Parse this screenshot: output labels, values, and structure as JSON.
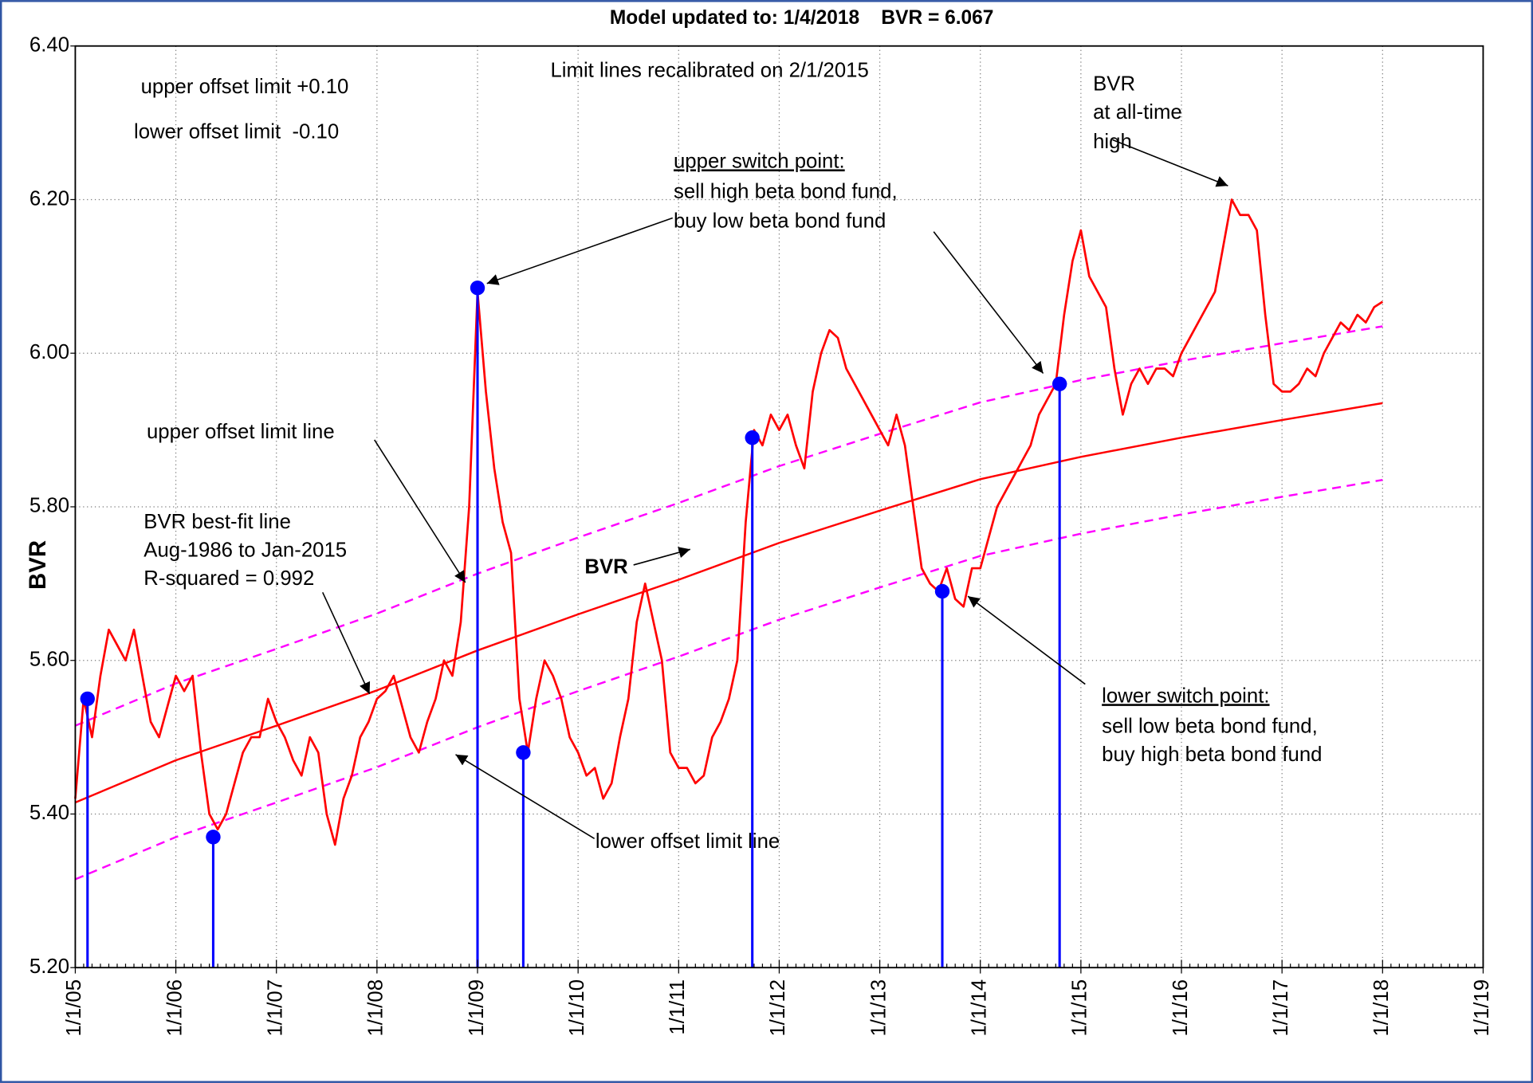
{
  "chart_data": {
    "type": "line",
    "title": "Model updated to: 1/4/2018    BVR = 6.067",
    "y_label": "BVR",
    "annotations": [
      {
        "text": "Limit lines recalibrated on 2/1/2015"
      },
      {
        "text": "upper offset limit +0.10"
      },
      {
        "text": "lower offset limit  -0.10"
      },
      {
        "text": "upper switch point:",
        "underline": true
      },
      {
        "text": "sell high beta bond fund,"
      },
      {
        "text": "buy low beta bond fund"
      },
      {
        "text": "BVR"
      },
      {
        "text": "at all-time"
      },
      {
        "text": "high"
      },
      {
        "text": "upper offset limit line"
      },
      {
        "text": "BVR best-fit line"
      },
      {
        "text": "Aug-1986 to Jan-2015"
      },
      {
        "text": "R-squared = 0.992"
      },
      {
        "text": "BVR",
        "bold": true
      },
      {
        "text": "lower offset limit line"
      },
      {
        "text": "lower switch point:",
        "underline": true
      },
      {
        "text": "sell low beta bond fund,"
      },
      {
        "text": "buy high beta bond fund"
      }
    ],
    "xlim": [
      "1/1/05",
      "1/1/19"
    ],
    "xticks": [
      "1/1/05",
      "1/1/06",
      "1/1/07",
      "1/1/08",
      "1/1/09",
      "1/1/10",
      "1/1/11",
      "1/1/12",
      "1/1/13",
      "1/1/14",
      "1/1/15",
      "1/1/16",
      "1/1/17",
      "1/1/18",
      "1/1/19"
    ],
    "ylim": [
      5.2,
      6.4
    ],
    "yticks": [
      {
        "value": 5.2,
        "label": "5.20"
      },
      {
        "value": 5.4,
        "label": "5.40"
      },
      {
        "value": 5.6,
        "label": "5.60"
      },
      {
        "value": 5.8,
        "label": "5.80"
      },
      {
        "value": 6.0,
        "label": "6.00"
      },
      {
        "value": 6.2,
        "label": "6.20"
      },
      {
        "value": 6.4,
        "label": "6.40"
      }
    ],
    "grid": true,
    "series": [
      {
        "color": "#ff0000",
        "style": "solid",
        "width": 2.2,
        "x": [
          "1/1/05",
          "2/1/05",
          "3/1/05",
          "4/1/05",
          "5/1/05",
          "6/1/05",
          "7/1/05",
          "8/1/05",
          "9/1/05",
          "10/1/05",
          "11/1/05",
          "12/1/05",
          "1/1/06",
          "2/1/06",
          "3/1/06",
          "4/1/06",
          "5/1/06",
          "6/1/06",
          "7/1/06",
          "8/1/06",
          "9/1/06",
          "10/1/06",
          "11/1/06",
          "12/1/06",
          "1/1/07",
          "2/1/07",
          "3/1/07",
          "4/1/07",
          "5/1/07",
          "6/1/07",
          "7/1/07",
          "8/1/07",
          "9/1/07",
          "10/1/07",
          "11/1/07",
          "12/1/07",
          "1/1/08",
          "2/1/08",
          "3/1/08",
          "4/1/08",
          "5/1/08",
          "6/1/08",
          "7/1/08",
          "8/1/08",
          "9/1/08",
          "10/1/08",
          "11/1/08",
          "12/1/08",
          "1/1/09",
          "2/1/09",
          "3/1/09",
          "4/1/09",
          "5/1/09",
          "6/1/09",
          "7/1/09",
          "8/1/09",
          "9/1/09",
          "10/1/09",
          "11/1/09",
          "12/1/09",
          "1/1/10",
          "2/1/10",
          "3/1/10",
          "4/1/10",
          "5/1/10",
          "6/1/10",
          "7/1/10",
          "8/1/10",
          "9/1/10",
          "10/1/10",
          "11/1/10",
          "12/1/10",
          "1/1/11",
          "2/1/11",
          "3/1/11",
          "4/1/11",
          "5/1/11",
          "6/1/11",
          "7/1/11",
          "8/1/11",
          "9/1/11",
          "10/1/11",
          "11/1/11",
          "12/1/11",
          "1/1/12",
          "2/1/12",
          "3/1/12",
          "4/1/12",
          "5/1/12",
          "6/1/12",
          "7/1/12",
          "8/1/12",
          "9/1/12",
          "10/1/12",
          "11/1/12",
          "12/1/12",
          "1/1/13",
          "2/1/13",
          "3/1/13",
          "4/1/13",
          "5/1/13",
          "6/1/13",
          "7/1/13",
          "8/1/13",
          "9/1/13",
          "10/1/13",
          "11/1/13",
          "12/1/13",
          "1/1/14",
          "2/1/14",
          "3/1/14",
          "4/1/14",
          "5/1/14",
          "6/1/14",
          "7/1/14",
          "8/1/14",
          "9/1/14",
          "10/1/14",
          "11/1/14",
          "12/1/14",
          "1/1/15",
          "2/1/15",
          "3/1/15",
          "4/1/15",
          "5/1/15",
          "6/1/15",
          "7/1/15",
          "8/1/15",
          "9/1/15",
          "10/1/15",
          "11/1/15",
          "12/1/15",
          "1/1/16",
          "2/1/16",
          "3/1/16",
          "4/1/16",
          "5/1/16",
          "6/1/16",
          "7/1/16",
          "8/1/16",
          "9/1/16",
          "10/1/16",
          "11/1/16",
          "12/1/16",
          "1/1/17",
          "2/1/17",
          "3/1/17",
          "4/1/17",
          "5/1/17",
          "6/1/17",
          "7/1/17",
          "8/1/17",
          "9/1/17",
          "10/1/17",
          "11/1/17",
          "12/1/17",
          "1/1/18"
        ],
        "values": [
          5.42,
          5.55,
          5.5,
          5.58,
          5.64,
          5.62,
          5.6,
          5.64,
          5.58,
          5.52,
          5.5,
          5.54,
          5.58,
          5.56,
          5.58,
          5.48,
          5.4,
          5.38,
          5.4,
          5.44,
          5.48,
          5.5,
          5.5,
          5.55,
          5.52,
          5.5,
          5.47,
          5.45,
          5.5,
          5.48,
          5.4,
          5.36,
          5.42,
          5.45,
          5.5,
          5.52,
          5.55,
          5.56,
          5.58,
          5.54,
          5.5,
          5.48,
          5.52,
          5.55,
          5.6,
          5.58,
          5.65,
          5.8,
          6.08,
          5.95,
          5.85,
          5.78,
          5.74,
          5.55,
          5.48,
          5.55,
          5.6,
          5.58,
          5.55,
          5.5,
          5.48,
          5.45,
          5.46,
          5.42,
          5.44,
          5.5,
          5.55,
          5.65,
          5.7,
          5.65,
          5.6,
          5.48,
          5.46,
          5.46,
          5.44,
          5.45,
          5.5,
          5.52,
          5.55,
          5.6,
          5.78,
          5.9,
          5.88,
          5.92,
          5.9,
          5.92,
          5.88,
          5.85,
          5.95,
          6.0,
          6.03,
          6.02,
          5.98,
          5.96,
          5.94,
          5.92,
          5.9,
          5.88,
          5.92,
          5.88,
          5.8,
          5.72,
          5.7,
          5.69,
          5.72,
          5.68,
          5.67,
          5.72,
          5.72,
          5.76,
          5.8,
          5.82,
          5.84,
          5.86,
          5.88,
          5.92,
          5.94,
          5.96,
          6.05,
          6.12,
          6.16,
          6.1,
          6.08,
          6.06,
          5.98,
          5.92,
          5.96,
          5.98,
          5.96,
          5.98,
          5.98,
          5.97,
          6.0,
          6.02,
          6.04,
          6.06,
          6.08,
          6.14,
          6.2,
          6.18,
          6.18,
          6.16,
          6.05,
          5.96,
          5.95,
          5.95,
          5.96,
          5.98,
          5.97,
          6.0,
          6.02,
          6.04,
          6.03,
          6.05,
          6.04,
          6.06,
          6.067
        ]
      },
      {
        "color": "#ff0000",
        "style": "solid",
        "width": 2,
        "x": [
          "1/1/05",
          "1/1/06",
          "1/1/07",
          "1/1/08",
          "1/1/09",
          "1/1/10",
          "1/1/11",
          "1/1/12",
          "1/1/13",
          "1/1/14",
          "1/1/15",
          "1/1/16",
          "1/1/17",
          "1/1/18"
        ],
        "values": [
          5.415,
          5.47,
          5.515,
          5.561,
          5.613,
          5.66,
          5.705,
          5.753,
          5.795,
          5.836,
          5.865,
          5.89,
          5.913,
          5.935
        ]
      },
      {
        "color": "#ff00ff",
        "style": "dashed",
        "width": 2,
        "x": [
          "1/1/05",
          "1/1/06",
          "1/1/07",
          "1/1/08",
          "1/1/09",
          "1/1/10",
          "1/1/11",
          "1/1/12",
          "1/1/13",
          "1/1/14",
          "1/1/15",
          "1/1/16",
          "1/1/17",
          "1/1/18"
        ],
        "values": [
          5.515,
          5.57,
          5.615,
          5.661,
          5.713,
          5.76,
          5.805,
          5.853,
          5.895,
          5.936,
          5.965,
          5.99,
          6.013,
          6.035
        ]
      },
      {
        "color": "#ff00ff",
        "style": "dashed",
        "width": 2,
        "x": [
          "1/1/05",
          "1/1/06",
          "1/1/07",
          "1/1/08",
          "1/1/09",
          "1/1/10",
          "1/1/11",
          "1/1/12",
          "1/1/13",
          "1/1/14",
          "1/1/15",
          "1/1/16",
          "1/1/17",
          "1/1/18"
        ],
        "values": [
          5.315,
          5.37,
          5.415,
          5.461,
          5.513,
          5.56,
          5.605,
          5.653,
          5.695,
          5.736,
          5.765,
          5.79,
          5.813,
          5.835
        ]
      },
      {
        "color": "#0000ff",
        "style": "points",
        "stems": true,
        "x": [
          "2/15/05",
          "5/15/06",
          "1/1/09",
          "6/15/09",
          "9/25/11",
          "8/15/13",
          "10/15/14"
        ],
        "values": [
          5.55,
          5.37,
          6.085,
          5.48,
          5.89,
          5.69,
          5.96
        ]
      }
    ]
  }
}
